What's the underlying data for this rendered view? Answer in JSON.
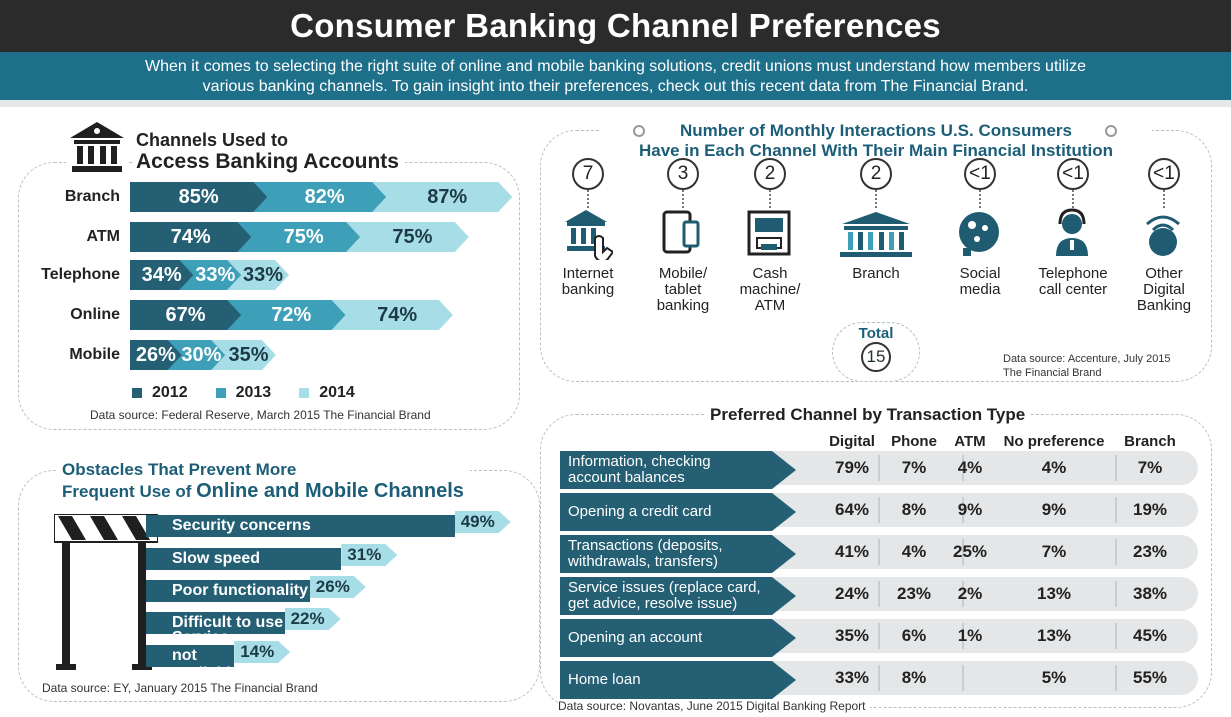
{
  "title": "Consumer Banking Channel Preferences",
  "subtitle_line1": "When it comes to selecting the right suite of online and mobile banking solutions, credit unions must understand how members utilize",
  "subtitle_line2": "various banking channels. To gain insight into their preferences, check out this recent data from The Financial Brand.",
  "channels": {
    "title_line1": "Channels Used to",
    "title_line2": "Access Banking Accounts",
    "source": "Data source: Federal Reserve, March 2015 The Financial Brand"
  },
  "obstacles": {
    "title_line1": "Obstacles That Prevent More",
    "title_line2a": "Frequent Use of ",
    "title_line2b": "Online and Mobile Channels",
    "source": "Data source: EY, January 2015 The Financial Brand"
  },
  "interactions": {
    "title_line1": "Number of Monthly Interactions U.S. Consumers",
    "title_line2": "Have in Each Channel With Their Main Financial Institution",
    "total_label": "Total",
    "total_value": "15",
    "source_line1": "Data source: Accenture, July 2015",
    "source_line2": "The Financial Brand"
  },
  "preferred": {
    "title": "Preferred Channel by Transaction Type",
    "source": "Data source: Novantas, June 2015 Digital Banking Report"
  },
  "colors": {
    "dark_teal": "#245f74",
    "mid_teal": "#3e9fb8",
    "light_teal": "#a7dde7",
    "header": "#2b2b2b",
    "banner": "#1e6f8a"
  },
  "chart_data": [
    {
      "type": "bar",
      "title": "Channels Used to Access Banking Accounts",
      "categories": [
        "Branch",
        "ATM",
        "Telephone",
        "Online",
        "Mobile"
      ],
      "series": [
        {
          "name": "2012",
          "values": [
            85,
            74,
            34,
            67,
            26
          ],
          "labels": [
            "85%",
            "74%",
            "34%",
            "67%",
            "26%"
          ]
        },
        {
          "name": "2013",
          "values": [
            82,
            75,
            33,
            72,
            30
          ],
          "labels": [
            "82%",
            "75%",
            "33%",
            "72%",
            "30%"
          ]
        },
        {
          "name": "2014",
          "values": [
            87,
            75,
            33,
            74,
            35
          ],
          "labels": [
            "87%",
            "75%",
            "33%",
            "74%",
            "35%"
          ]
        }
      ],
      "unit": "%"
    },
    {
      "type": "bar",
      "title": "Obstacles That Prevent More Frequent Use of Online and Mobile Channels",
      "categories": [
        "Security concerns",
        "Slow speed",
        "Poor functionality",
        "Difficult to use",
        "Service not available"
      ],
      "values": [
        49,
        31,
        26,
        22,
        14
      ],
      "labels": [
        "49%",
        "31%",
        "26%",
        "22%",
        "14%"
      ],
      "unit": "%"
    },
    {
      "type": "bar",
      "title": "Number of Monthly Interactions U.S. Consumers Have in Each Channel With Their Main Financial Institution",
      "categories": [
        "Internet banking",
        "Mobile/ tablet banking",
        "Cash machine/ ATM",
        "Branch",
        "Social media",
        "Telephone call center",
        "Other Digital Banking"
      ],
      "values": [
        7,
        3,
        2,
        2,
        0.5,
        0.5,
        0.5
      ],
      "labels": [
        "7",
        "3",
        "2",
        "2",
        "<1",
        "<1",
        "<1"
      ],
      "label_lines": [
        [
          "Internet",
          "banking"
        ],
        [
          "Mobile/",
          "tablet",
          "banking"
        ],
        [
          "Cash",
          "machine/",
          "ATM"
        ],
        [
          "Branch"
        ],
        [
          "Social",
          "media"
        ],
        [
          "Telephone",
          "call center"
        ],
        [
          "Other",
          "Digital",
          "Banking"
        ]
      ],
      "icons": [
        "bank-hand-icon",
        "tablet-phone-icon",
        "atm-icon",
        "bank-building-icon",
        "social-media-icon",
        "headset-agent-icon",
        "globe-wifi-icon"
      ],
      "total": 15
    },
    {
      "type": "table",
      "title": "Preferred Channel by Transaction Type",
      "columns": [
        "Digital",
        "Phone",
        "ATM",
        "No preference",
        "Branch"
      ],
      "rows": [
        {
          "label_lines": [
            "Information, checking",
            "account balances"
          ],
          "values": [
            "79%",
            "7%",
            "4%",
            "4%",
            "7%"
          ]
        },
        {
          "label_lines": [
            "Opening a credit card"
          ],
          "values": [
            "64%",
            "8%",
            "9%",
            "9%",
            "19%"
          ]
        },
        {
          "label_lines": [
            "Transactions (deposits,",
            "withdrawals, transfers)"
          ],
          "values": [
            "41%",
            "4%",
            "25%",
            "7%",
            "23%"
          ]
        },
        {
          "label_lines": [
            "Service issues (replace card,",
            "get advice, resolve issue)"
          ],
          "values": [
            "24%",
            "23%",
            "2%",
            "13%",
            "38%"
          ]
        },
        {
          "label_lines": [
            "Opening an account"
          ],
          "values": [
            "35%",
            "6%",
            "1%",
            "13%",
            "45%"
          ]
        },
        {
          "label_lines": [
            "Home loan"
          ],
          "values": [
            "33%",
            "8%",
            "",
            "5%",
            "55%"
          ]
        }
      ]
    }
  ]
}
